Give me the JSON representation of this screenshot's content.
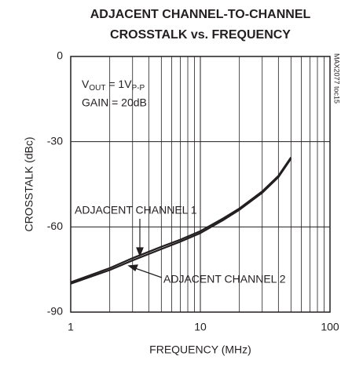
{
  "chart_data": {
    "type": "line",
    "title": [
      "ADJACENT CHANNEL-TO-CHANNEL",
      "CROSSTALK vs. FREQUENCY"
    ],
    "x_label": "FREQUENCY (MHz)",
    "y_label": "CROSSTALK (dBc)",
    "watermark": "MAX2077 toc15",
    "conditions": [
      [
        "V",
        "OUT",
        " = 1V",
        "P-P"
      ],
      "GAIN = 20dB"
    ],
    "x": [
      1,
      2,
      3,
      5,
      7,
      10,
      15,
      20,
      30,
      40,
      50
    ],
    "series": [
      {
        "name": "ADJACENT CHANNEL 1",
        "color": "#231f20",
        "values": [
          -79.5,
          -74.5,
          -71,
          -67,
          -64.5,
          -61.5,
          -57,
          -53.5,
          -47.5,
          -42,
          -35.5
        ]
      },
      {
        "name": "ADJACENT CHANNEL 2",
        "color": "#231f20",
        "values": [
          -80,
          -75.2,
          -71.8,
          -67.8,
          -65.2,
          -62.2,
          -57.6,
          -54,
          -48,
          -42.5,
          -36
        ]
      }
    ],
    "xlim": [
      1,
      100
    ],
    "xticks": [
      1,
      10,
      100
    ],
    "xscale": "log",
    "ylim": [
      -90,
      0
    ],
    "yticks": [
      -90,
      -60,
      -30,
      0
    ],
    "grid": true
  }
}
